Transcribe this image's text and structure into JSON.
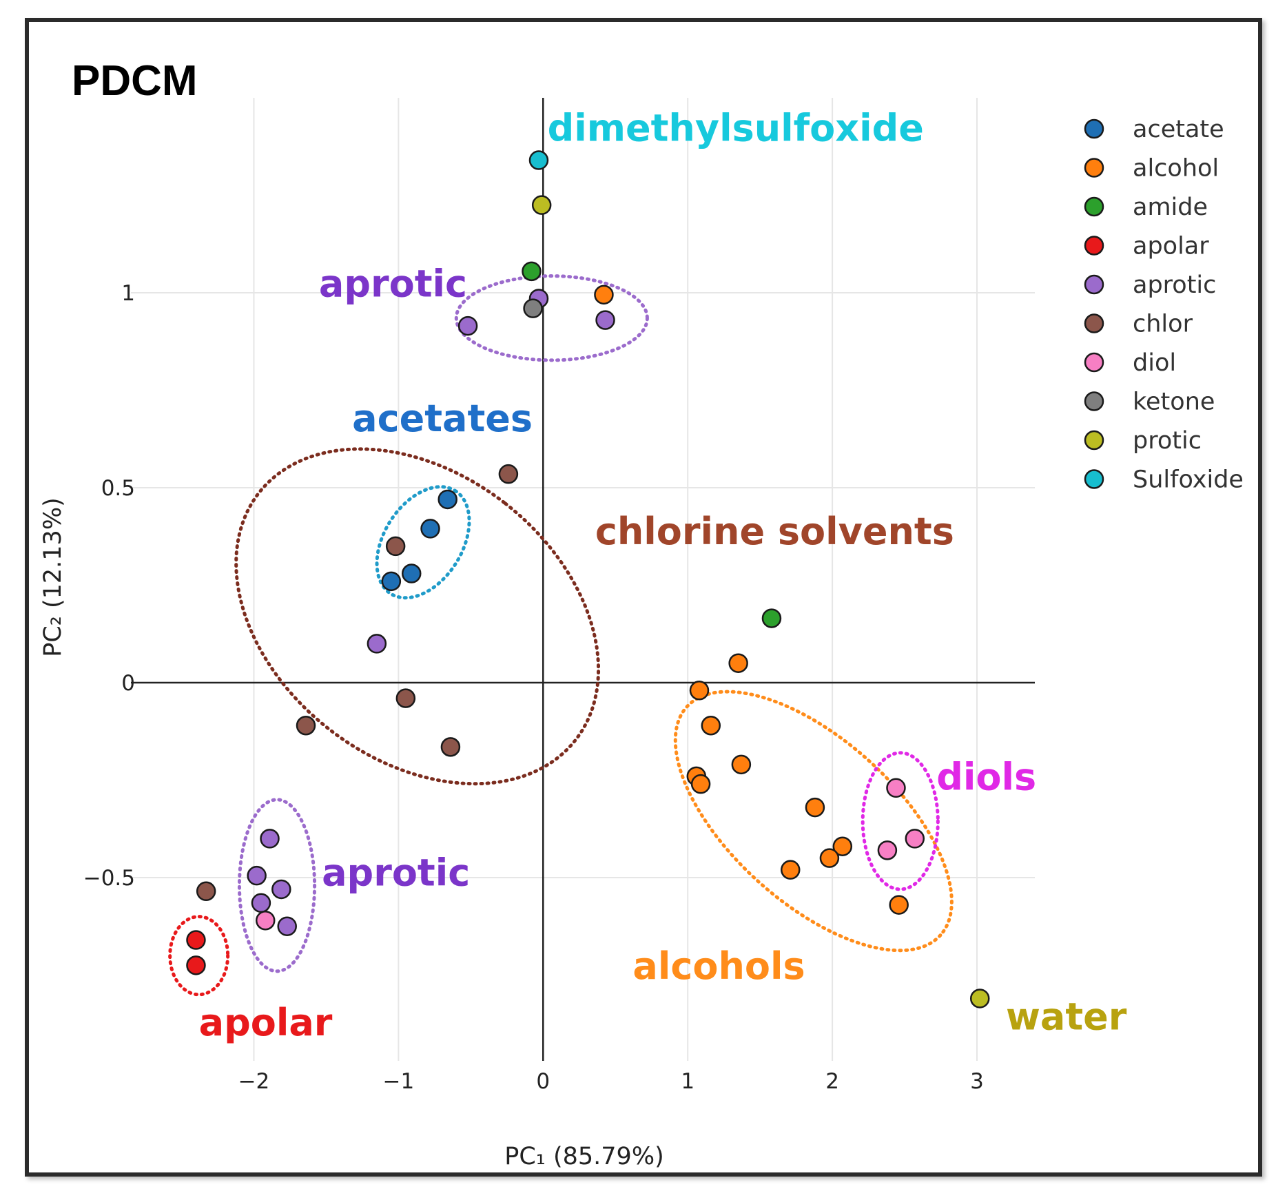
{
  "chart_data": {
    "type": "scatter",
    "title": "PDCM",
    "xlabel": "PC₁ (85.79%)",
    "ylabel": "PC₂ (12.13%)",
    "xlim": [
      -2.85,
      3.4
    ],
    "ylim": [
      -0.97,
      1.5
    ],
    "xticks": [
      -2,
      -1,
      0,
      1,
      2,
      3
    ],
    "yticks": [
      -0.5,
      0,
      0.5,
      1
    ],
    "xtick_labels": [
      "−2",
      "−1",
      "0",
      "1",
      "2",
      "3"
    ],
    "ytick_labels": [
      "−0.5",
      "0",
      "0.5",
      "1"
    ],
    "grid": true,
    "legend_position": "top-right",
    "series": [
      {
        "name": "acetate",
        "color": "#1f6fb4",
        "points": [
          [
            -0.66,
            0.47
          ],
          [
            -0.78,
            0.395
          ],
          [
            -0.91,
            0.28
          ],
          [
            -1.05,
            0.26
          ]
        ]
      },
      {
        "name": "alcohol",
        "color": "#ff7f0e",
        "points": [
          [
            0.42,
            0.995
          ],
          [
            1.35,
            0.05
          ],
          [
            1.08,
            -0.02
          ],
          [
            1.16,
            -0.11
          ],
          [
            1.37,
            -0.21
          ],
          [
            1.06,
            -0.24
          ],
          [
            1.09,
            -0.26
          ],
          [
            1.88,
            -0.32
          ],
          [
            2.07,
            -0.42
          ],
          [
            1.98,
            -0.45
          ],
          [
            1.71,
            -0.48
          ],
          [
            2.46,
            -0.57
          ]
        ]
      },
      {
        "name": "amide",
        "color": "#2ca02c",
        "points": [
          [
            -0.08,
            1.055
          ],
          [
            1.58,
            0.165
          ]
        ]
      },
      {
        "name": "apolar",
        "color": "#e8191b",
        "points": [
          [
            -2.4,
            -0.66
          ],
          [
            -2.4,
            -0.725
          ]
        ]
      },
      {
        "name": "aprotic",
        "color": "#9b6bcc",
        "points": [
          [
            -0.03,
            0.985
          ],
          [
            -0.52,
            0.915
          ],
          [
            0.43,
            0.93
          ],
          [
            -1.15,
            0.1
          ],
          [
            -1.89,
            -0.4
          ],
          [
            -1.98,
            -0.495
          ],
          [
            -1.81,
            -0.53
          ],
          [
            -1.95,
            -0.565
          ],
          [
            -1.77,
            -0.625
          ]
        ]
      },
      {
        "name": "chlor",
        "color": "#8c564b",
        "points": [
          [
            -0.24,
            0.535
          ],
          [
            -1.02,
            0.35
          ],
          [
            -0.95,
            -0.04
          ],
          [
            -1.64,
            -0.11
          ],
          [
            -0.64,
            -0.165
          ],
          [
            -2.33,
            -0.535
          ]
        ]
      },
      {
        "name": "diol",
        "color": "#f77fc4",
        "points": [
          [
            2.44,
            -0.27
          ],
          [
            2.57,
            -0.4
          ],
          [
            2.38,
            -0.43
          ],
          [
            -1.92,
            -0.61
          ]
        ]
      },
      {
        "name": "ketone",
        "color": "#7f7f7f",
        "points": [
          [
            -0.07,
            0.96
          ]
        ]
      },
      {
        "name": "protic",
        "color": "#bcbd22",
        "points": [
          [
            -0.01,
            1.225
          ],
          [
            3.02,
            -0.81
          ]
        ]
      },
      {
        "name": "Sulfoxide",
        "color": "#17becf",
        "points": [
          [
            -0.03,
            1.34
          ]
        ]
      }
    ],
    "annotations": [
      {
        "name": "dimethylsulfoxide-label",
        "text": "dimethylsulfoxide",
        "color": "#17c9dd",
        "x": 0.03,
        "y": 1.39,
        "anchor": "start"
      },
      {
        "name": "aprotic-top-label",
        "text": "aprotic",
        "color": "#7b35c9",
        "x": -1.55,
        "y": 0.99,
        "anchor": "start"
      },
      {
        "name": "acetates-label",
        "text": "acetates",
        "color": "#1f6fc9",
        "x": -1.32,
        "y": 0.645,
        "anchor": "start"
      },
      {
        "name": "chlorine-solvents-label",
        "text": "chlorine solvents",
        "color": "#a0452a",
        "x": 0.36,
        "y": 0.355,
        "anchor": "start"
      },
      {
        "name": "diols-label",
        "text": "diols",
        "color": "#e028e6",
        "x": 2.72,
        "y": -0.275,
        "anchor": "start"
      },
      {
        "name": "aprotic-bottom-label",
        "text": "aprotic",
        "color": "#7b35c9",
        "x": -1.53,
        "y": -0.52,
        "anchor": "start"
      },
      {
        "name": "alcohols-label",
        "text": "alcohols",
        "color": "#ff8c1a",
        "x": 0.62,
        "y": -0.76,
        "anchor": "start"
      },
      {
        "name": "apolar-label",
        "text": "apolar",
        "color": "#e8191b",
        "x": -2.38,
        "y": -0.905,
        "anchor": "start"
      },
      {
        "name": "water-label",
        "text": "water",
        "color": "#b8a20f",
        "x": 3.2,
        "y": -0.89,
        "anchor": "start"
      }
    ],
    "groups": [
      {
        "name": "aprotic-top-ellipse",
        "color": "#9b6bcc",
        "cx": 0.06,
        "cy": 0.935,
        "rx": 0.66,
        "ry": 0.108,
        "angle": 0
      },
      {
        "name": "chlorine-ellipse",
        "color": "#7b2c1e",
        "cx": -0.87,
        "cy": 0.17,
        "rx": 0.99,
        "ry": 0.515,
        "angle": -52
      },
      {
        "name": "acetates-ellipse",
        "color": "#1f9bc9",
        "cx": -0.83,
        "cy": 0.36,
        "rx": 0.42,
        "ry": 0.1,
        "angle": -58
      },
      {
        "name": "alcohols-ellipse",
        "color": "#ff8c1a",
        "cx": 1.87,
        "cy": -0.355,
        "rx": 1.18,
        "ry": 0.21,
        "angle": 42
      },
      {
        "name": "diols-ellipse",
        "color": "#e028e6",
        "cx": 2.47,
        "cy": -0.355,
        "rx": 0.26,
        "ry": 0.175,
        "angle": 0
      },
      {
        "name": "aprotic-bottom-ellipse",
        "color": "#9b6bcc",
        "cx": -1.84,
        "cy": -0.52,
        "rx": 0.26,
        "ry": 0.22,
        "angle": 0
      },
      {
        "name": "apolar-ellipse",
        "color": "#e8191b",
        "cx": -2.38,
        "cy": -0.7,
        "rx": 0.2,
        "ry": 0.1,
        "angle": 0
      }
    ]
  }
}
